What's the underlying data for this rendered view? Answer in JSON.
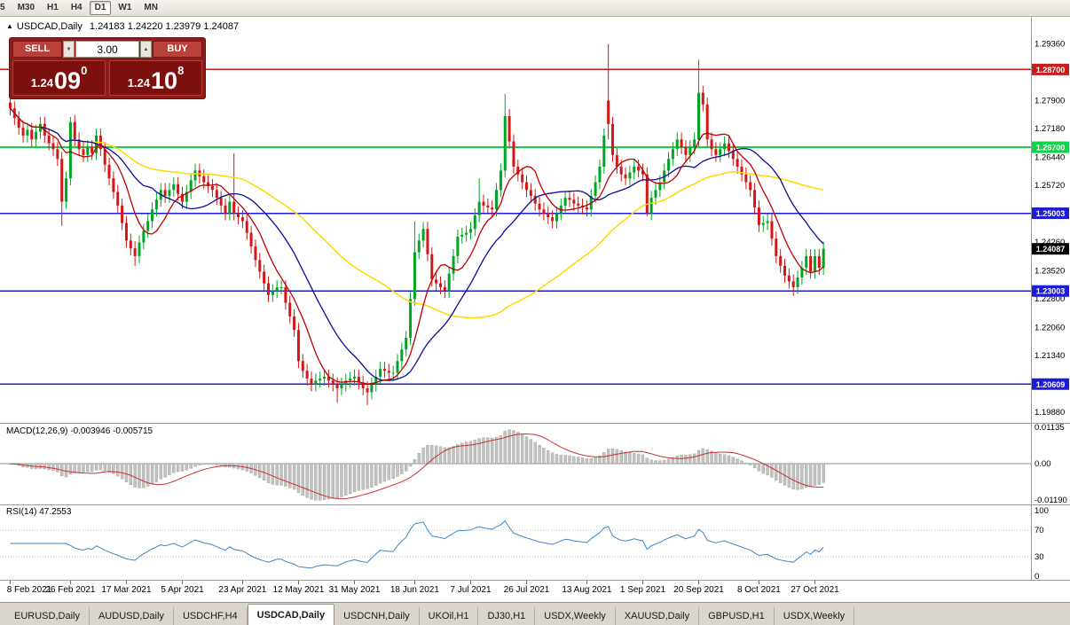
{
  "toolbar": {
    "timeframes": [
      "5",
      "M30",
      "H1",
      "H4",
      "D1",
      "W1",
      "MN"
    ],
    "active_timeframe": "D1"
  },
  "chart_header": {
    "marker_icon": "▲",
    "symbol": "USDCAD,Daily",
    "ohlc": "1.24183 1.24220 1.23979 1.24087"
  },
  "trade_panel": {
    "sell_label": "SELL",
    "buy_label": "BUY",
    "volume": "3.00",
    "sell_price": {
      "small": "1.24",
      "big": "09",
      "sup": "0"
    },
    "buy_price": {
      "small": "1.24",
      "big": "10",
      "sup": "8"
    },
    "colors": {
      "panel_bg": "#8e1b17",
      "button_bg": "#b8423a",
      "price_box_bg": "#7c100d"
    }
  },
  "indicators": {
    "macd_label": "MACD(12,26,9) -0.003946 -0.005715",
    "rsi_label": "RSI(14) 47.2553"
  },
  "tabs": {
    "items": [
      "EURUSD,Daily",
      "AUDUSD,Daily",
      "USDCHF,H4",
      "USDCAD,Daily",
      "USDCNH,Daily",
      "UKOil,H1",
      "DJ30,H1",
      "USDX,Weekly",
      "XAUUSD,Daily",
      "GBPUSD,H1",
      "USDX,Weekly"
    ],
    "active_index": 3
  },
  "icons": {
    "volume_up": "▲",
    "volume_down": "▼"
  },
  "chart_data": {
    "type": "candlestick",
    "symbol": "USDCAD",
    "timeframe": "Daily",
    "title": "USDCAD,Daily",
    "current_price": 1.24087,
    "price_axis": {
      "top_price": 1.2962,
      "bottom_price": 1.1968
    },
    "y_ticks": [
      1.2936,
      1.279,
      1.2718,
      1.2644,
      1.2572,
      1.2426,
      1.2352,
      1.228,
      1.2206,
      1.2134,
      1.1988
    ],
    "levels": [
      {
        "price": 1.287,
        "color": "#c41e1e",
        "width": 1.5
      },
      {
        "price": 1.267,
        "color": "#12d24a",
        "width": 2
      },
      {
        "price": 1.25003,
        "color": "#1c1cd8",
        "width": 1.5
      },
      {
        "price": 1.23003,
        "color": "#1c1cd8",
        "width": 1.5
      },
      {
        "price": 1.20609,
        "color": "#1c1cd8",
        "width": 1.5
      }
    ],
    "x_labels": [
      "8 Feb 2021",
      "26 Feb 2021",
      "17 Mar 2021",
      "5 Apr 2021",
      "23 Apr 2021",
      "12 May 2021",
      "31 May 2021",
      "18 Jun 2021",
      "7 Jul 2021",
      "26 Jul 2021",
      "13 Aug 2021",
      "1 Sep 2021",
      "20 Sep 2021",
      "8 Oct 2021",
      "27 Oct 2021"
    ],
    "x_label_indices": [
      0,
      14,
      27,
      40,
      54,
      67,
      80,
      94,
      107,
      120,
      134,
      147,
      160,
      174,
      187
    ],
    "up_color": "#00a524",
    "down_color": "#d41616",
    "wick": 0.0018,
    "open_first": 1.2785,
    "closes": [
      1.277,
      1.2745,
      1.272,
      1.27,
      1.2715,
      1.269,
      1.271,
      1.273,
      1.27,
      1.268,
      1.2665,
      1.264,
      1.253,
      1.259,
      1.2735,
      1.269,
      1.2665,
      1.265,
      1.267,
      1.2655,
      1.27,
      1.2665,
      1.2625,
      1.259,
      1.2555,
      1.252,
      1.2475,
      1.243,
      1.241,
      1.239,
      1.2425,
      1.2455,
      1.248,
      1.251,
      1.2535,
      1.256,
      1.2545,
      1.256,
      1.2575,
      1.255,
      1.253,
      1.2555,
      1.2585,
      1.261,
      1.2595,
      1.258,
      1.257,
      1.256,
      1.254,
      1.252,
      1.25,
      1.253,
      1.25,
      1.249,
      1.248,
      1.245,
      1.2415,
      1.238,
      1.235,
      1.232,
      1.229,
      1.23,
      1.231,
      1.231,
      1.227,
      1.2235,
      1.22,
      1.212,
      1.2095,
      1.2075,
      1.206,
      1.207,
      1.2075,
      1.208,
      1.207,
      1.206,
      1.205,
      1.206,
      1.207,
      1.2075,
      1.208,
      1.2065,
      1.205,
      1.204,
      1.206,
      1.208,
      1.21,
      1.2095,
      1.209,
      1.209,
      1.212,
      1.215,
      1.218,
      1.228,
      1.24,
      1.243,
      1.246,
      1.2395,
      1.233,
      1.232,
      1.231,
      1.23,
      1.2345,
      1.239,
      1.244,
      1.2445,
      1.245,
      1.246,
      1.2495,
      1.253,
      1.252,
      1.2515,
      1.251,
      1.256,
      1.261,
      1.275,
      1.2685,
      1.262,
      1.26,
      1.258,
      1.256,
      1.2545,
      1.2525,
      1.251,
      1.25,
      1.249,
      1.248,
      1.25,
      1.252,
      1.254,
      1.2535,
      1.2525,
      1.252,
      1.2515,
      1.251,
      1.2545,
      1.258,
      1.262,
      1.27,
      1.273,
      1.265,
      1.262,
      1.26,
      1.259,
      1.2605,
      1.262,
      1.261,
      1.26,
      1.25,
      1.254,
      1.256,
      1.258,
      1.261,
      1.264,
      1.2665,
      1.269,
      1.267,
      1.265,
      1.267,
      1.269,
      1.281,
      1.278,
      1.269,
      1.2665,
      1.265,
      1.2665,
      1.268,
      1.266,
      1.264,
      1.262,
      1.26,
      1.258,
      1.256,
      1.2515,
      1.247,
      1.2475,
      1.248,
      1.2435,
      1.239,
      1.2365,
      1.234,
      1.2325,
      1.231,
      1.2335,
      1.236,
      1.239,
      1.235,
      1.239,
      1.236,
      1.2409
    ],
    "specials": {
      "12": {
        "low": 1.2468
      },
      "14": {
        "high": 1.2748
      },
      "29": {
        "low": 1.2365
      },
      "52": {
        "high": 1.2654
      },
      "76": {
        "low": 1.2013
      },
      "83": {
        "low": 1.2007
      },
      "94": {
        "high": 1.248
      },
      "109": {
        "high": 1.259
      },
      "115": {
        "high": 1.2807
      },
      "139": {
        "open": 1.279,
        "high": 1.2936,
        "low": 1.269
      },
      "148": {
        "low": 1.2493
      },
      "160": {
        "high": 1.2895
      },
      "182": {
        "low": 1.2288
      }
    },
    "ma": [
      {
        "period": 55,
        "color": "#ffd900",
        "width": 1.5
      },
      {
        "period": 20,
        "color": "#0b0b96",
        "width": 1.3
      },
      {
        "period": 8,
        "color": "#c00000",
        "width": 1.3
      }
    ],
    "macd": {
      "name": "MACD(12,26,9)",
      "main_value": -0.003946,
      "signal_value": -0.005715,
      "bar_color": "#c2c2c2",
      "bar_stroke": "#9e9e9e",
      "signal_color": "#cc2f2f",
      "axis": [
        {
          "v": 0.01135,
          "label": "0.01135"
        },
        {
          "v": 0,
          "label": "0.00"
        },
        {
          "v": -0.0119,
          "label": "-0.01190"
        }
      ]
    },
    "rsi": {
      "name": "RSI(14)",
      "last_value": 47.2553,
      "line_color": "#3f85c6",
      "dashed_levels": [
        70,
        30
      ],
      "axis": [
        {
          "v": 100,
          "label": "100"
        },
        {
          "v": 70,
          "label": "70"
        },
        {
          "v": 30,
          "label": "30"
        },
        {
          "v": 0,
          "label": "0"
        }
      ]
    }
  }
}
